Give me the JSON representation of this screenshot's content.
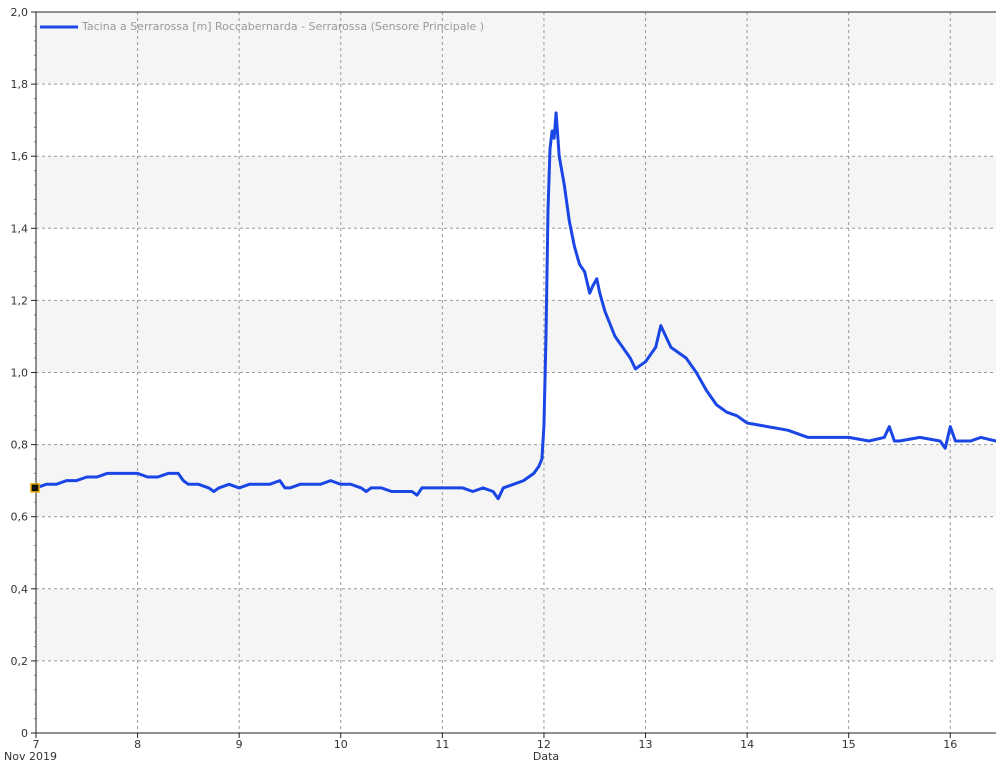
{
  "chart_data": {
    "type": "line",
    "legend": {
      "label": "Tacina a Serrarossa [m] Roccabernarda - Serrarossa  (Sensore Principale )",
      "position": "top-left"
    },
    "xlabel": "Data",
    "x_start_label": "Nov 2019",
    "ylabel": "",
    "xlim": [
      7,
      16.45
    ],
    "ylim": [
      0,
      2.0
    ],
    "x_ticks": [
      7,
      8,
      9,
      10,
      11,
      12,
      13,
      14,
      15,
      16
    ],
    "x_tick_labels": [
      "7",
      "8",
      "9",
      "10",
      "11",
      "12",
      "13",
      "14",
      "15",
      "16"
    ],
    "y_ticks": [
      0,
      0.2,
      0.4,
      0.6,
      0.8,
      1.0,
      1.2,
      1.4,
      1.6,
      1.8,
      2.0
    ],
    "y_tick_labels": [
      "0",
      "0,2",
      "0,4",
      "0,6",
      "0,8",
      "1,0",
      "1,2",
      "1,4",
      "1,6",
      "1,8",
      "2,0"
    ],
    "grid": true,
    "series": [
      {
        "name": "Tacina a Serrarossa [m] Roccabernarda - Serrarossa  (Sensore Principale )",
        "color": "#1a46e6",
        "x": [
          7.0,
          7.1,
          7.2,
          7.3,
          7.4,
          7.5,
          7.6,
          7.7,
          7.8,
          7.9,
          8.0,
          8.1,
          8.2,
          8.3,
          8.4,
          8.45,
          8.5,
          8.6,
          8.7,
          8.75,
          8.8,
          8.9,
          9.0,
          9.1,
          9.2,
          9.3,
          9.4,
          9.45,
          9.5,
          9.6,
          9.7,
          9.8,
          9.9,
          10.0,
          10.1,
          10.2,
          10.25,
          10.3,
          10.4,
          10.5,
          10.6,
          10.7,
          10.75,
          10.8,
          10.9,
          11.0,
          11.1,
          11.2,
          11.3,
          11.4,
          11.5,
          11.55,
          11.6,
          11.7,
          11.8,
          11.9,
          11.95,
          11.98,
          12.0,
          12.02,
          12.04,
          12.06,
          12.08,
          12.1,
          12.12,
          12.15,
          12.2,
          12.25,
          12.3,
          12.35,
          12.4,
          12.45,
          12.48,
          12.52,
          12.55,
          12.6,
          12.7,
          12.8,
          12.85,
          12.9,
          12.95,
          13.0,
          13.05,
          13.1,
          13.15,
          13.2,
          13.25,
          13.3,
          13.4,
          13.5,
          13.6,
          13.7,
          13.8,
          13.9,
          14.0,
          14.2,
          14.4,
          14.6,
          14.8,
          15.0,
          15.2,
          15.35,
          15.4,
          15.45,
          15.5,
          15.7,
          15.9,
          15.95,
          16.0,
          16.05,
          16.2,
          16.3,
          16.45
        ],
        "y": [
          0.68,
          0.69,
          0.69,
          0.7,
          0.7,
          0.71,
          0.71,
          0.72,
          0.72,
          0.72,
          0.72,
          0.71,
          0.71,
          0.72,
          0.72,
          0.7,
          0.69,
          0.69,
          0.68,
          0.67,
          0.68,
          0.69,
          0.68,
          0.69,
          0.69,
          0.69,
          0.7,
          0.68,
          0.68,
          0.69,
          0.69,
          0.69,
          0.7,
          0.69,
          0.69,
          0.68,
          0.67,
          0.68,
          0.68,
          0.67,
          0.67,
          0.67,
          0.66,
          0.68,
          0.68,
          0.68,
          0.68,
          0.68,
          0.67,
          0.68,
          0.67,
          0.65,
          0.68,
          0.69,
          0.7,
          0.72,
          0.74,
          0.76,
          0.85,
          1.1,
          1.45,
          1.62,
          1.67,
          1.65,
          1.72,
          1.6,
          1.52,
          1.42,
          1.35,
          1.3,
          1.28,
          1.22,
          1.24,
          1.26,
          1.22,
          1.17,
          1.1,
          1.06,
          1.04,
          1.01,
          1.02,
          1.03,
          1.05,
          1.07,
          1.13,
          1.1,
          1.07,
          1.06,
          1.04,
          1.0,
          0.95,
          0.91,
          0.89,
          0.88,
          0.86,
          0.85,
          0.84,
          0.82,
          0.82,
          0.82,
          0.81,
          0.82,
          0.85,
          0.81,
          0.81,
          0.82,
          0.81,
          0.79,
          0.85,
          0.81,
          0.81,
          0.82,
          0.81
        ]
      }
    ]
  }
}
